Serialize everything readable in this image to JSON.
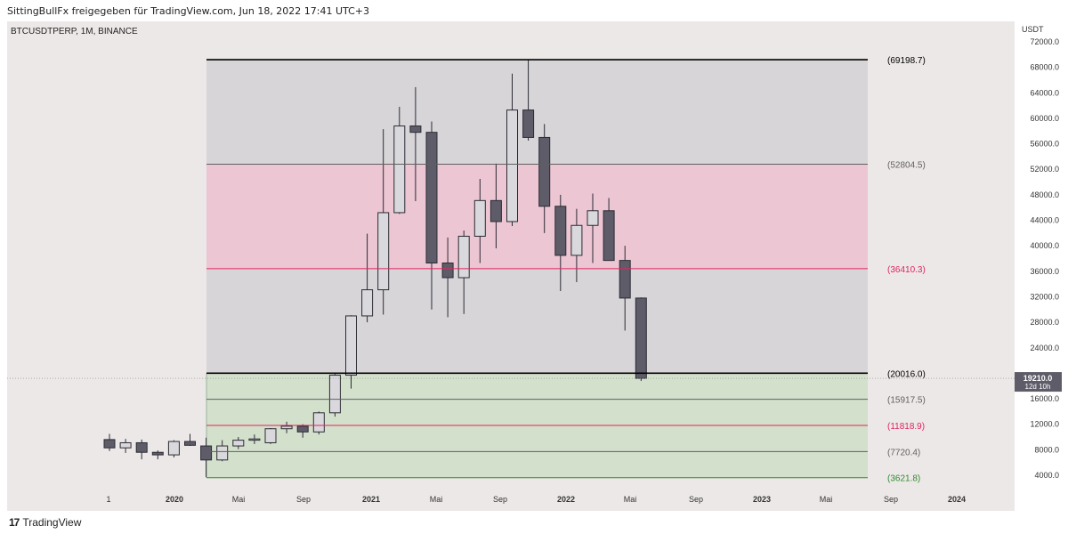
{
  "header": {
    "attribution": "SittingBullFx freigegeben für TradingView.com, Jun 18, 2022 17:41 UTC+3",
    "symbol": "BTCUSDTPERP, 1M, BINANCE"
  },
  "footer": {
    "logo_text": "TradingView",
    "logo_mark": "17"
  },
  "colors": {
    "background": "#ede8e8",
    "bull_body": "#d9d8dc",
    "bear_body": "#5d5c68",
    "candle_outline": "#2b2b33",
    "zone_gray": "#d7d5d8",
    "zone_pink": "#ecc6d3",
    "zone_green": "#d3e0cc",
    "level_red": "#e0245e",
    "level_green": "#2e8b2e",
    "level_black": "#000000",
    "level_gray": "#606060"
  },
  "chart_data": {
    "type": "candlestick",
    "symbol": "BTCUSDTPERP",
    "interval": "1M",
    "exchange": "BINANCE",
    "yunit": "USDT",
    "ylim": [
      3000,
      74500
    ],
    "ytick_labels": [
      "72000.0",
      "68000.0",
      "64000.0",
      "60000.0",
      "56000.0",
      "52000.0",
      "48000.0",
      "44000.0",
      "40000.0",
      "36000.0",
      "32000.0",
      "28000.0",
      "24000.0",
      "16000.0",
      "12000.0",
      "8000.0",
      "4000.0"
    ],
    "xtick_labels": [
      "1",
      "2020",
      "Mai",
      "Sep",
      "2021",
      "Mai",
      "Sep",
      "2022",
      "Mai",
      "Sep",
      "2023",
      "Mai",
      "Sep",
      "2024"
    ],
    "candles": [
      {
        "o": 9600,
        "h": 10500,
        "l": 7800,
        "c": 8300
      },
      {
        "o": 8300,
        "h": 9700,
        "l": 7500,
        "c": 9100
      },
      {
        "o": 9100,
        "h": 9600,
        "l": 6500,
        "c": 7600
      },
      {
        "o": 7600,
        "h": 7900,
        "l": 6500,
        "c": 7200
      },
      {
        "o": 7200,
        "h": 9500,
        "l": 6800,
        "c": 9300
      },
      {
        "o": 9300,
        "h": 10500,
        "l": 8600,
        "c": 8700
      },
      {
        "o": 8600,
        "h": 9900,
        "l": 3700,
        "c": 6400
      },
      {
        "o": 6400,
        "h": 9500,
        "l": 6200,
        "c": 8600
      },
      {
        "o": 8600,
        "h": 10000,
        "l": 8100,
        "c": 9500
      },
      {
        "o": 9500,
        "h": 10400,
        "l": 8900,
        "c": 9700
      },
      {
        "o": 9100,
        "h": 11400,
        "l": 8900,
        "c": 11300
      },
      {
        "o": 11300,
        "h": 12400,
        "l": 10600,
        "c": 11700
      },
      {
        "o": 11700,
        "h": 12000,
        "l": 9900,
        "c": 10800
      },
      {
        "o": 10800,
        "h": 14000,
        "l": 10400,
        "c": 13800
      },
      {
        "o": 13800,
        "h": 19900,
        "l": 13200,
        "c": 19700
      },
      {
        "o": 19700,
        "h": 29100,
        "l": 17600,
        "c": 29000
      },
      {
        "o": 29000,
        "h": 41900,
        "l": 28000,
        "c": 33100
      },
      {
        "o": 33100,
        "h": 58300,
        "l": 29200,
        "c": 45200
      },
      {
        "o": 45200,
        "h": 61800,
        "l": 45000,
        "c": 58800
      },
      {
        "o": 58800,
        "h": 64900,
        "l": 47000,
        "c": 57800
      },
      {
        "o": 57800,
        "h": 59500,
        "l": 30000,
        "c": 37300
      },
      {
        "o": 37300,
        "h": 41300,
        "l": 28800,
        "c": 35000
      },
      {
        "o": 35000,
        "h": 42400,
        "l": 29300,
        "c": 41500
      },
      {
        "o": 41500,
        "h": 50500,
        "l": 37300,
        "c": 47100
      },
      {
        "o": 47100,
        "h": 52900,
        "l": 39600,
        "c": 43800
      },
      {
        "o": 43800,
        "h": 67000,
        "l": 43100,
        "c": 61300
      },
      {
        "o": 61300,
        "h": 69198.7,
        "l": 56500,
        "c": 57000
      },
      {
        "o": 57000,
        "h": 59100,
        "l": 42000,
        "c": 46200
      },
      {
        "o": 46200,
        "h": 48000,
        "l": 32900,
        "c": 38500
      },
      {
        "o": 38500,
        "h": 45800,
        "l": 34300,
        "c": 43200
      },
      {
        "o": 43200,
        "h": 48200,
        "l": 37300,
        "c": 45500
      },
      {
        "o": 45500,
        "h": 47500,
        "l": 37700,
        "c": 37700
      },
      {
        "o": 37700,
        "h": 40000,
        "l": 26700,
        "c": 31800
      },
      {
        "o": 31800,
        "h": 31900,
        "l": 18800,
        "c": 19210
      }
    ],
    "last_price": {
      "value": "19210.0",
      "countdown": "12d 10h"
    },
    "fib_levels": [
      {
        "label": "(69198.7)",
        "value": 69198.7,
        "color": "#000000"
      },
      {
        "label": "(52804.5)",
        "value": 52804.5,
        "color": "#606060"
      },
      {
        "label": "(36410.3)",
        "value": 36410.3,
        "color": "#e0245e"
      },
      {
        "label": "(20016.0)",
        "value": 20016.0,
        "color": "#000000"
      },
      {
        "label": "(15917.5)",
        "value": 15917.5,
        "color": "#606060"
      },
      {
        "label": "(11818.9)",
        "value": 11818.9,
        "color": "#e0245e"
      },
      {
        "label": "(7720.4)",
        "value": 7720.4,
        "color": "#606060"
      },
      {
        "label": "(3621.8)",
        "value": 3621.8,
        "color": "#2e8b2e"
      }
    ],
    "zones": [
      {
        "from": 52804.5,
        "to": 69198.7,
        "color": "#d7d5d8"
      },
      {
        "from": 36410.3,
        "to": 52804.5,
        "color": "#ecc6d3"
      },
      {
        "from": 20016.0,
        "to": 36410.3,
        "color": "#d7d5d8"
      },
      {
        "from": 3621.8,
        "to": 20016.0,
        "color": "#d3e0cc"
      }
    ]
  }
}
